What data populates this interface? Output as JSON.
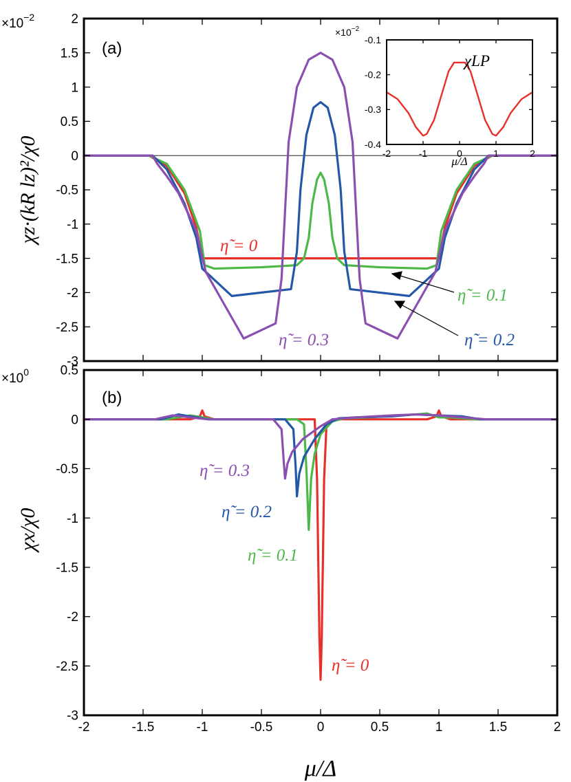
{
  "x_axis_label": "μ/Δ",
  "colors": {
    "eta0": "#e8302a",
    "eta01": "#4cb848",
    "eta02": "#2457a8",
    "eta03": "#8a4fb0"
  },
  "panels": {
    "a": {
      "label": "(a)",
      "multiplier": "×10",
      "multiplier_exp": "−2",
      "ylabel": "χz·(kR lz)²/χ0",
      "annotations": [
        "η̃ = 0",
        "η̃ = 0.1",
        "η̃ = 0.2",
        "η̃ = 0.3"
      ]
    },
    "b": {
      "label": "(b)",
      "multiplier": "×10",
      "multiplier_exp": "0",
      "ylabel": "χx/χ0",
      "annotations": [
        "η̃ = 0.3",
        "η̃ = 0.2",
        "η̃ = 0.1",
        "η̃ = 0"
      ]
    },
    "inset": {
      "label": "χLP",
      "multiplier": "×10",
      "multiplier_exp": "−2",
      "xlabel": "μ/Δ"
    }
  },
  "chart_data": [
    {
      "panel": "a",
      "type": "line",
      "xlabel": "μ/Δ",
      "ylabel": "χz·(kR lz)²/χ0",
      "xlim": [
        -2,
        2
      ],
      "ylim": [
        -3,
        2
      ],
      "xticks": [
        "-2",
        "-1.5",
        "-1",
        "-0.5",
        "0",
        "0.5",
        "1",
        "1.5",
        "2"
      ],
      "yticks": [
        "-3",
        "-2.5",
        "-2",
        "-1.5",
        "-1",
        "-0.5",
        "0",
        "0.5",
        "1",
        "1.5",
        "2"
      ],
      "series": [
        {
          "name": "η̃ = 0",
          "color": "#e8302a",
          "x": [
            -2,
            -1.45,
            -1.3,
            -1.15,
            -1.05,
            -1.0,
            -0.5,
            0,
            0.5,
            1.0,
            1.05,
            1.15,
            1.3,
            1.45,
            2
          ],
          "y": [
            0,
            0,
            -0.15,
            -0.55,
            -1.05,
            -1.5,
            -1.5,
            -1.5,
            -1.5,
            -1.5,
            -1.05,
            -0.55,
            -0.15,
            0,
            0
          ]
        },
        {
          "name": "η̃ = 0.1",
          "color": "#4cb848",
          "x": [
            -2,
            -1.45,
            -1.3,
            -1.15,
            -1.02,
            -0.98,
            -0.9,
            -0.5,
            -0.2,
            -0.14,
            -0.1,
            -0.07,
            -0.03,
            0,
            0.03,
            0.07,
            0.1,
            0.14,
            0.2,
            0.5,
            0.9,
            0.98,
            1.02,
            1.15,
            1.3,
            1.45,
            2
          ],
          "y": [
            0,
            0,
            -0.12,
            -0.5,
            -1.1,
            -1.6,
            -1.65,
            -1.63,
            -1.6,
            -1.5,
            -1.2,
            -0.7,
            -0.35,
            -0.25,
            -0.35,
            -0.7,
            -1.2,
            -1.5,
            -1.6,
            -1.63,
            -1.65,
            -1.6,
            -1.1,
            -0.5,
            -0.12,
            0,
            0
          ]
        },
        {
          "name": "η̃ = 0.2",
          "color": "#2457a8",
          "x": [
            -2,
            -1.42,
            -1.3,
            -1.15,
            -1.05,
            -1.0,
            -0.75,
            -0.25,
            -0.2,
            -0.17,
            -0.12,
            -0.06,
            0,
            0.06,
            0.12,
            0.17,
            0.2,
            0.25,
            0.75,
            1.0,
            1.05,
            1.15,
            1.3,
            1.42,
            2
          ],
          "y": [
            0,
            0,
            -0.2,
            -0.7,
            -1.2,
            -1.65,
            -2.05,
            -1.95,
            -1.4,
            -0.5,
            0.3,
            0.7,
            0.78,
            0.7,
            0.3,
            -0.5,
            -1.4,
            -1.95,
            -2.05,
            -1.65,
            -1.2,
            -0.7,
            -0.2,
            0,
            0
          ]
        },
        {
          "name": "η̃ = 0.3",
          "color": "#8a4fb0",
          "x": [
            -2,
            -1.42,
            -1.38,
            -1.3,
            -1.2,
            -1.05,
            -0.97,
            -0.65,
            -0.38,
            -0.33,
            -0.3,
            -0.27,
            -0.2,
            -0.1,
            0,
            0.1,
            0.2,
            0.27,
            0.3,
            0.33,
            0.38,
            0.65,
            0.97,
            1.05,
            1.2,
            1.3,
            1.38,
            1.42,
            2
          ],
          "y": [
            0,
            0,
            -0.12,
            -0.3,
            -0.55,
            -1.1,
            -1.7,
            -2.67,
            -2.45,
            -1.8,
            -0.8,
            0.2,
            1.0,
            1.4,
            1.5,
            1.4,
            1.0,
            0.2,
            -0.8,
            -1.8,
            -2.45,
            -2.67,
            -1.7,
            -1.1,
            -0.55,
            -0.3,
            -0.12,
            0,
            0
          ]
        }
      ]
    },
    {
      "panel": "b",
      "type": "line",
      "xlabel": "μ/Δ",
      "ylabel": "χx/χ0",
      "xlim": [
        -2,
        2
      ],
      "ylim": [
        -3,
        0.5
      ],
      "xticks": [
        "-2",
        "-1.5",
        "-1",
        "-0.5",
        "0",
        "0.5",
        "1",
        "1.5",
        "2"
      ],
      "yticks": [
        "-3",
        "-2.5",
        "-2",
        "-1.5",
        "-1",
        "-0.5",
        "0",
        "0.5"
      ],
      "series": [
        {
          "name": "η̃ = 0",
          "color": "#e8302a",
          "x": [
            -2,
            -1.1,
            -1.02,
            -1.0,
            -0.98,
            -0.9,
            -0.05,
            -0.03,
            -0.01,
            0,
            0.01,
            0.03,
            0.05,
            0.1,
            0.2,
            0.5,
            0.9,
            0.98,
            1.0,
            1.02,
            1.1,
            2
          ],
          "y": [
            0,
            0,
            0.03,
            0.09,
            0.03,
            0,
            0,
            -0.6,
            -2.2,
            -2.64,
            -2.2,
            -0.6,
            -0.05,
            0,
            0,
            0,
            0,
            0.03,
            0.09,
            0.03,
            0,
            0
          ]
        },
        {
          "name": "η̃ = 0.1",
          "color": "#4cb848",
          "x": [
            -2,
            -1.3,
            -1.2,
            -1.1,
            -1.0,
            -0.9,
            -0.2,
            -0.14,
            -0.12,
            -0.1,
            -0.08,
            -0.05,
            0,
            0.1,
            0.2,
            0.4,
            0.8,
            0.9,
            1.0,
            1.1,
            1.2,
            1.3,
            2
          ],
          "y": [
            0,
            0,
            0.02,
            0.04,
            0.02,
            0,
            0,
            -0.05,
            -0.5,
            -1.12,
            -0.6,
            -0.35,
            -0.15,
            -0.02,
            0.01,
            0.02,
            0.05,
            0.06,
            0.02,
            0.02,
            0.01,
            0,
            0
          ]
        },
        {
          "name": "η̃ = 0.2",
          "color": "#2457a8",
          "x": [
            -2,
            -1.35,
            -1.2,
            -1.1,
            -0.95,
            -0.3,
            -0.23,
            -0.21,
            -0.2,
            -0.18,
            -0.14,
            -0.05,
            0.05,
            0.15,
            0.3,
            0.6,
            0.8,
            1.0,
            1.2,
            1.35,
            2
          ],
          "y": [
            0,
            0,
            0.05,
            0.03,
            0,
            0,
            -0.1,
            -0.5,
            -0.78,
            -0.55,
            -0.38,
            -0.2,
            -0.05,
            0.01,
            0.02,
            0.03,
            0.05,
            0.04,
            0.03,
            0,
            0
          ]
        },
        {
          "name": "η̃ = 0.3",
          "color": "#8a4fb0",
          "x": [
            -2,
            -1.4,
            -1.25,
            -1.1,
            -0.95,
            -0.4,
            -0.33,
            -0.31,
            -0.3,
            -0.28,
            -0.24,
            -0.15,
            0,
            0.1,
            0.3,
            0.6,
            0.8,
            1.0,
            1.2,
            1.4,
            2
          ],
          "y": [
            0,
            0,
            0.04,
            0.02,
            0,
            0,
            -0.1,
            -0.45,
            -0.6,
            -0.45,
            -0.33,
            -0.2,
            -0.07,
            0,
            0.02,
            0.04,
            0.05,
            0.04,
            0.02,
            0,
            0
          ]
        }
      ]
    },
    {
      "panel": "inset",
      "type": "line",
      "xlabel": "μ/Δ",
      "ylabel": "χLP",
      "xlim": [
        -2,
        2
      ],
      "ylim": [
        -0.4,
        -0.1
      ],
      "xticks": [
        "-2",
        "-1",
        "0",
        "1",
        "2"
      ],
      "yticks": [
        "-0.4",
        "-0.3",
        "-0.2",
        "-0.1"
      ],
      "series": [
        {
          "color": "#e8302a",
          "x": [
            -2,
            -1.7,
            -1.4,
            -1.2,
            -1.0,
            -0.9,
            -0.7,
            -0.5,
            -0.3,
            -0.15,
            0,
            0.15,
            0.3,
            0.5,
            0.7,
            0.9,
            1.0,
            1.2,
            1.4,
            1.7,
            2
          ],
          "y": [
            -0.25,
            -0.27,
            -0.31,
            -0.35,
            -0.375,
            -0.37,
            -0.33,
            -0.26,
            -0.19,
            -0.165,
            -0.165,
            -0.165,
            -0.19,
            -0.26,
            -0.33,
            -0.37,
            -0.375,
            -0.35,
            -0.31,
            -0.27,
            -0.25
          ]
        }
      ]
    }
  ]
}
